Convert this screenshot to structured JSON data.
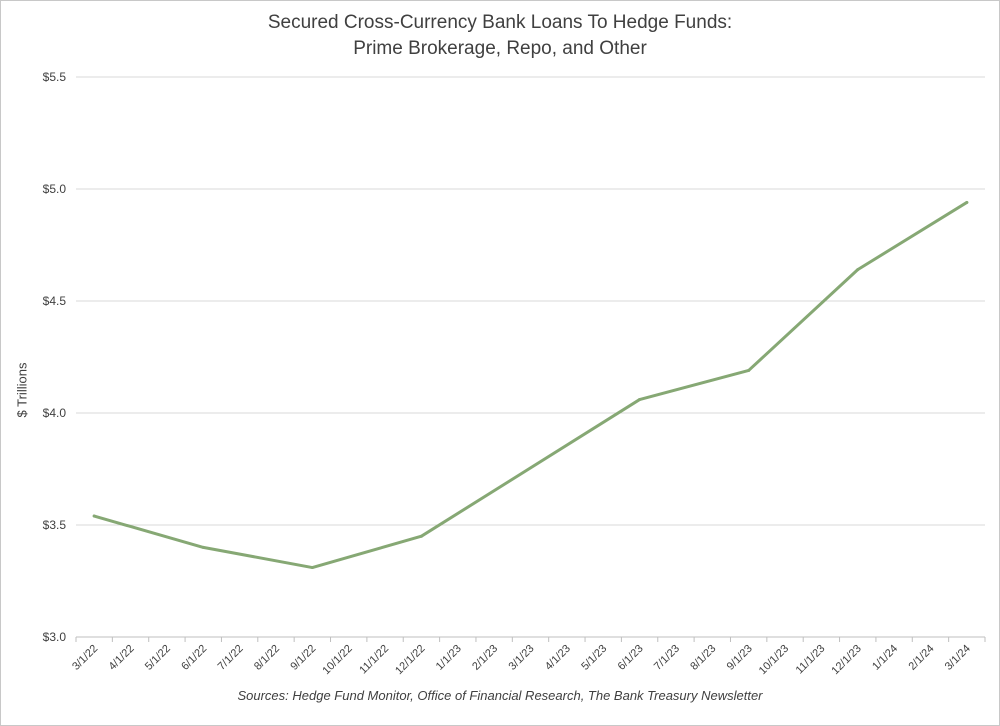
{
  "chart_data": {
    "type": "line",
    "title_line1": "Secured Cross-Currency Bank Loans To Hedge Funds:",
    "title_line2": "Prime Brokerage, Repo, and Other",
    "ylabel": "$ Trillions",
    "source": "Sources: Hedge Fund Monitor, Office of Financial Research, The Bank Treasury Newsletter",
    "ylim": [
      3.0,
      5.5
    ],
    "yticks": [
      3.0,
      3.5,
      4.0,
      4.5,
      5.0,
      5.5
    ],
    "ytick_labels": [
      "$3.0",
      "$3.5",
      "$4.0",
      "$4.5",
      "$5.0",
      "$5.5"
    ],
    "categories": [
      "3/1/22",
      "4/1/22",
      "5/1/22",
      "6/1/22",
      "7/1/22",
      "8/1/22",
      "9/1/22",
      "10/1/22",
      "11/1/22",
      "12/1/22",
      "1/1/23",
      "2/1/23",
      "3/1/23",
      "4/1/23",
      "5/1/23",
      "6/1/23",
      "7/1/23",
      "8/1/23",
      "9/1/23",
      "10/1/23",
      "11/1/23",
      "12/1/23",
      "1/1/24",
      "2/1/24",
      "3/1/24"
    ],
    "points": [
      {
        "x": "3/1/22",
        "y": 3.54
      },
      {
        "x": "6/1/22",
        "y": 3.4
      },
      {
        "x": "9/1/22",
        "y": 3.31
      },
      {
        "x": "12/1/22",
        "y": 3.45
      },
      {
        "x": "6/1/23",
        "y": 4.06
      },
      {
        "x": "9/1/23",
        "y": 4.19
      },
      {
        "x": "12/1/23",
        "y": 4.64
      },
      {
        "x": "3/1/24",
        "y": 4.94
      }
    ],
    "series_color": "#86a874",
    "grid": true
  }
}
